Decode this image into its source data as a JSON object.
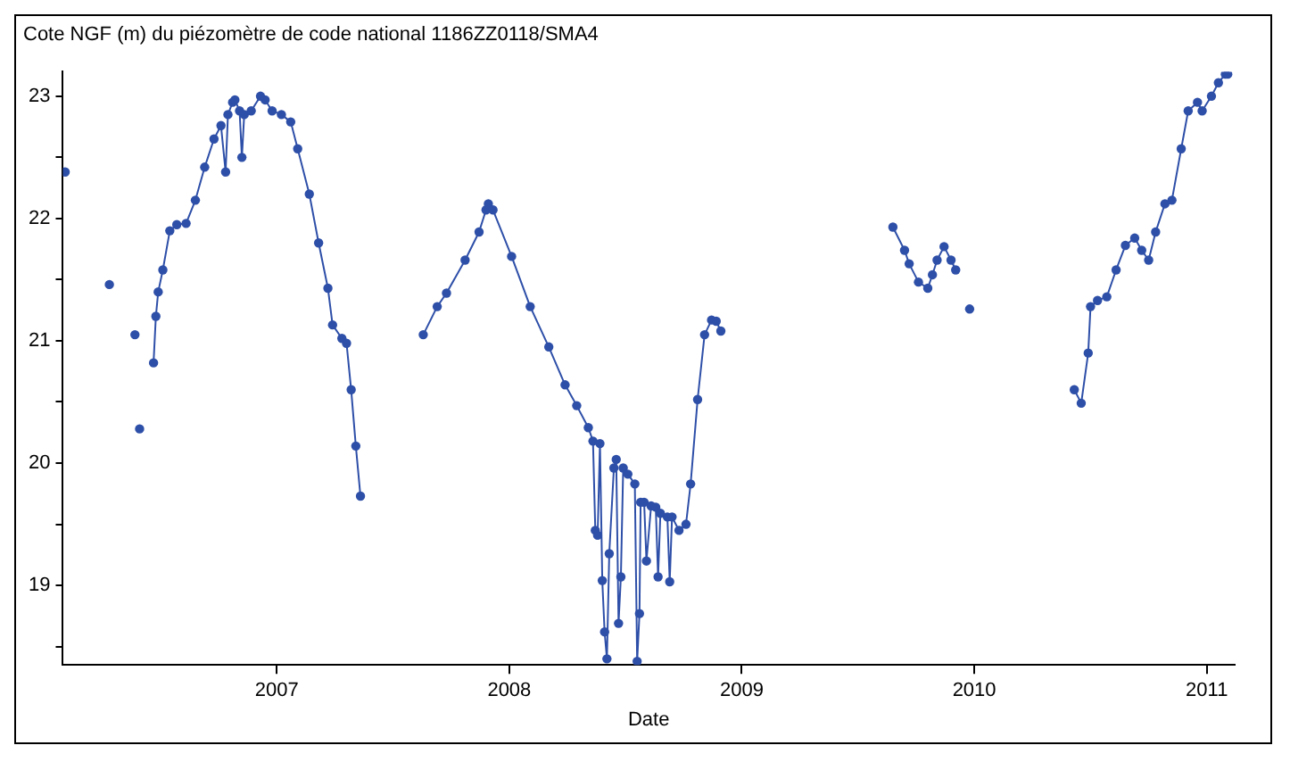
{
  "chart_data": {
    "type": "line",
    "title": "Cote NGF (m) du piézomètre de code national 1186ZZ0118/SMA4",
    "xlabel": "Date",
    "xlim": [
      2006.08,
      2011.12
    ],
    "xticks": [
      2007,
      2008,
      2009,
      2010,
      2011
    ],
    "ylim": [
      18.35,
      23.2
    ],
    "yticks": [
      {
        "value": 18.5,
        "label": null
      },
      19,
      {
        "value": 19.5,
        "label": null
      },
      20,
      {
        "value": 20.5,
        "label": null
      },
      21,
      {
        "value": 21.5,
        "label": null
      },
      22,
      {
        "value": 22.5,
        "label": null
      },
      23
    ],
    "legend": false,
    "marker": "circle",
    "line_style": "solid",
    "series": [
      {
        "color": "#2e4fa8",
        "x": [
          2006.09,
          2006.18,
          2006.28,
          2006.33,
          2006.39,
          2006.4,
          2006.41,
          2006.44,
          2006.47,
          2006.48,
          2006.49,
          2006.51,
          2006.54,
          2006.57,
          2006.61,
          2006.65,
          2006.69,
          2006.73,
          2006.76,
          2006.78,
          2006.79,
          2006.81,
          2006.82,
          2006.84,
          2006.85,
          2006.86,
          2006.89,
          2006.93,
          2006.95,
          2006.98,
          2007.02,
          2007.06,
          2007.09,
          2007.14,
          2007.18,
          2007.22,
          2007.24,
          2007.28,
          2007.3,
          2007.32,
          2007.34,
          2007.36,
          2007.5,
          2007.63,
          2007.69,
          2007.73,
          2007.81,
          2007.87,
          2007.9,
          2007.91,
          2007.93,
          2008.01,
          2008.09,
          2008.17,
          2008.24,
          2008.29,
          2008.34,
          2008.36,
          2008.37,
          2008.38,
          2008.39,
          2008.4,
          2008.41,
          2008.42,
          2008.43,
          2008.45,
          2008.46,
          2008.47,
          2008.48,
          2008.49,
          2008.51,
          2008.54,
          2008.55,
          2008.56,
          2008.565,
          2008.58,
          2008.59,
          2008.61,
          2008.63,
          2008.64,
          2008.65,
          2008.68,
          2008.69,
          2008.7,
          2008.73,
          2008.76,
          2008.78,
          2008.81,
          2008.84,
          2008.87,
          2008.89,
          2008.91,
          2009.3,
          2009.65,
          2009.7,
          2009.72,
          2009.76,
          2009.8,
          2009.82,
          2009.84,
          2009.87,
          2009.9,
          2009.92,
          2009.95,
          2009.98,
          2010.2,
          2010.43,
          2010.46,
          2010.49,
          2010.5,
          2010.53,
          2010.57,
          2010.61,
          2010.65,
          2010.69,
          2010.72,
          2010.75,
          2010.78,
          2010.82,
          2010.85,
          2010.89,
          2010.92,
          2010.96,
          2010.98,
          2011.02,
          2011.05,
          2011.08,
          2011.09
        ],
        "values": [
          22.38,
          null,
          21.46,
          null,
          21.05,
          null,
          20.28,
          null,
          20.82,
          21.2,
          21.4,
          21.58,
          21.9,
          21.95,
          21.96,
          22.15,
          22.42,
          22.65,
          22.76,
          22.38,
          22.85,
          22.95,
          22.97,
          22.88,
          22.5,
          22.85,
          22.88,
          23.0,
          22.97,
          22.88,
          22.85,
          22.79,
          22.57,
          22.2,
          21.8,
          21.43,
          21.13,
          21.02,
          20.98,
          20.6,
          20.14,
          19.73,
          null,
          21.05,
          21.28,
          21.39,
          21.66,
          21.89,
          22.07,
          22.12,
          22.07,
          21.69,
          21.28,
          20.95,
          20.64,
          20.47,
          20.29,
          20.18,
          19.45,
          19.41,
          20.16,
          19.04,
          18.62,
          18.4,
          19.26,
          19.96,
          20.03,
          18.69,
          19.07,
          19.96,
          19.91,
          19.83,
          18.38,
          18.77,
          19.68,
          19.68,
          19.2,
          19.65,
          19.64,
          19.07,
          19.59,
          19.56,
          19.03,
          19.56,
          19.45,
          19.5,
          19.83,
          20.52,
          21.05,
          21.17,
          21.16,
          21.08,
          null,
          21.93,
          21.74,
          21.63,
          21.48,
          21.43,
          21.54,
          21.66,
          21.77,
          21.66,
          21.58,
          null,
          21.26,
          null,
          20.6,
          20.49,
          20.9,
          21.28,
          21.33,
          21.36,
          21.58,
          21.78,
          21.84,
          21.74,
          21.66,
          21.89,
          22.12,
          22.15,
          22.57,
          22.88,
          22.95,
          22.88,
          23.0,
          23.11,
          23.18,
          23.18
        ]
      }
    ]
  }
}
